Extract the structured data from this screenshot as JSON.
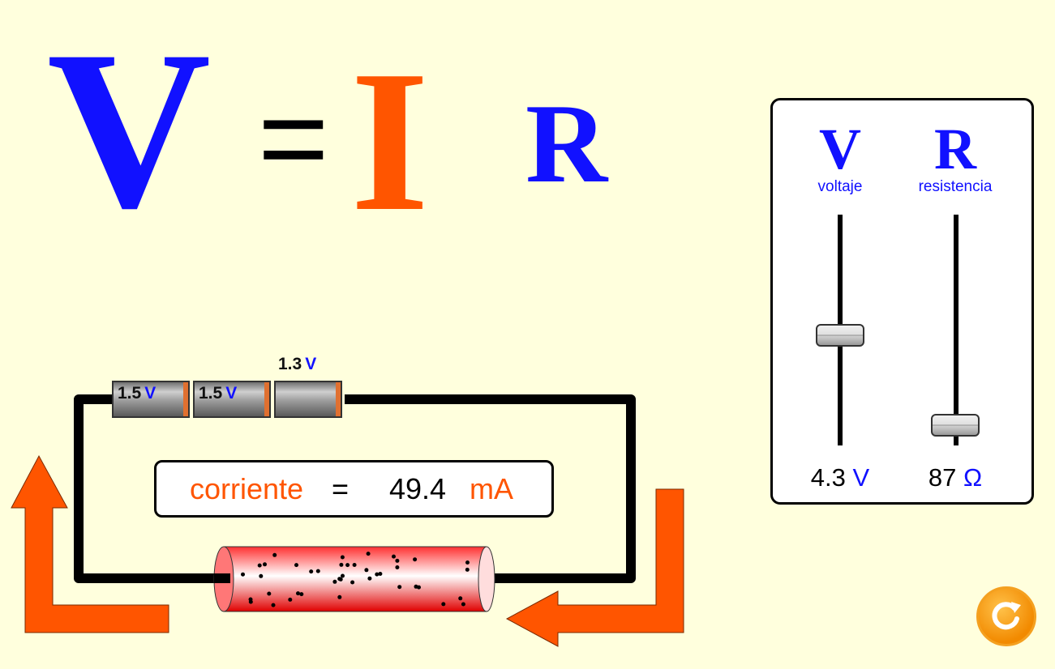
{
  "equation": {
    "v": "V",
    "equals": "=",
    "i": "I",
    "r": "R"
  },
  "panel": {
    "voltage": {
      "letter": "V",
      "name": "voltaje",
      "value": "4.3",
      "unit": "V"
    },
    "resistance": {
      "letter": "R",
      "name": "resistencia",
      "value": "87",
      "unit": "Ω"
    }
  },
  "batteries": [
    {
      "value": "1.5",
      "unit": "V"
    },
    {
      "value": "1.5",
      "unit": "V"
    },
    {
      "value": "1.3",
      "unit": "V"
    }
  ],
  "current": {
    "label": "corriente",
    "equals": "=",
    "value": "49.4",
    "unit": "mA"
  },
  "colors": {
    "blue": "#1111ff",
    "orange": "#ff5500",
    "background": "#ffffdd"
  },
  "icons": {
    "reset": "refresh-icon"
  }
}
